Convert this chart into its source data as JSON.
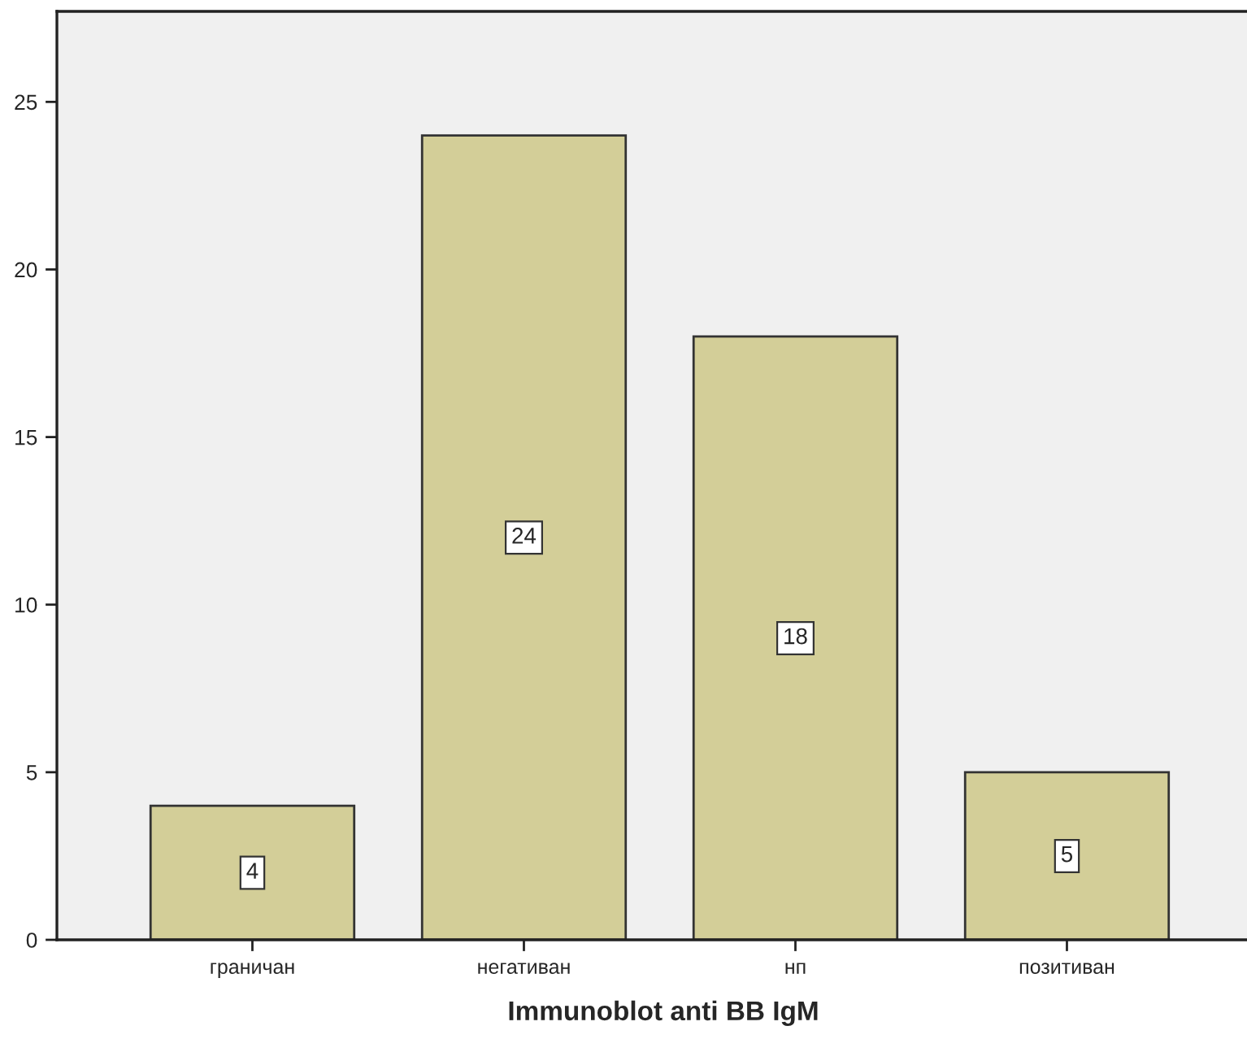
{
  "chart_data": {
    "type": "bar",
    "xlabel": "Immunoblot anti BB IgM",
    "categories": [
      "граничан",
      "негативан",
      "нп",
      "позитиван"
    ],
    "values": [
      4,
      24,
      18,
      5
    ],
    "color": "#d3ce98",
    "ylim": [
      0,
      27.7
    ],
    "yticks": [
      0,
      5,
      10,
      15,
      20,
      25
    ],
    "grid": false,
    "data_labels": true
  }
}
